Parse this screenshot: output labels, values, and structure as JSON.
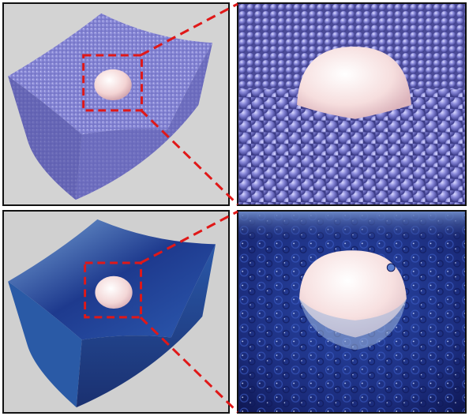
{
  "figure": {
    "panels": [
      {
        "id": "top-left",
        "content": "overview-granular-spheres"
      },
      {
        "id": "top-right",
        "content": "zoom-granular-spheres"
      },
      {
        "id": "bottom-left",
        "content": "overview-fluid-surface"
      },
      {
        "id": "bottom-right",
        "content": "zoom-fluid-surface"
      }
    ],
    "colors": {
      "background": "#d3d3d3",
      "particle": "#7b7bd0",
      "particle_shadow": "#4b4b98",
      "fluid_light": "#3a66b8",
      "fluid_dark": "#0d1a5a",
      "sphere": "#f4d8d8",
      "callout": "#e01818",
      "border": "#111111"
    }
  }
}
